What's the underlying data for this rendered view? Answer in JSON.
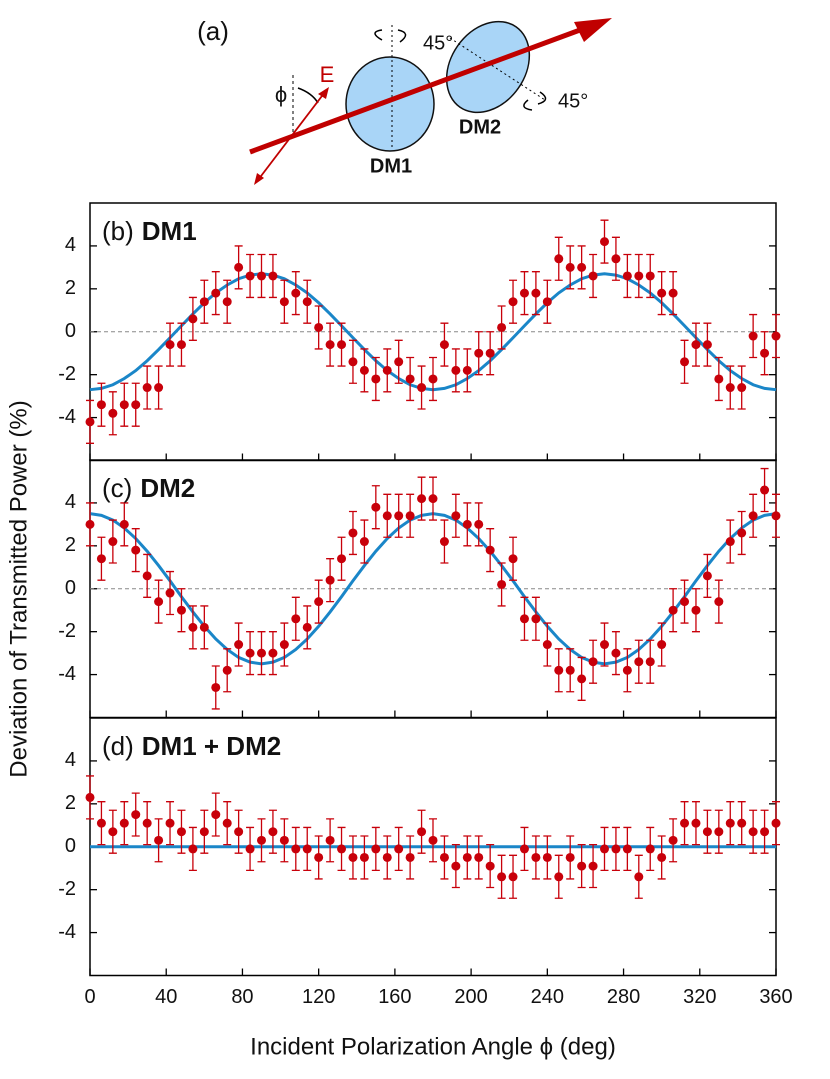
{
  "diagram": {
    "label": "(a)",
    "field": "E",
    "angle": "ϕ",
    "rot1": "45°",
    "rot2": "45°",
    "dm1": "DM1",
    "dm2": "DM2"
  },
  "figure": {
    "xlabel": "Incident Polarization Angle ϕ (deg)",
    "ylabel": "Deviation of Transmitted Power (%)"
  },
  "chart_data": [
    {
      "type": "scatter",
      "label": "(b)",
      "title": "DM1",
      "x": [
        0,
        6,
        12,
        18,
        24,
        30,
        36,
        42,
        48,
        54,
        60,
        66,
        72,
        78,
        84,
        90,
        96,
        102,
        108,
        114,
        120,
        126,
        132,
        138,
        144,
        150,
        156,
        162,
        168,
        174,
        180,
        186,
        192,
        198,
        204,
        210,
        216,
        222,
        228,
        234,
        240,
        246,
        252,
        258,
        264,
        270,
        276,
        282,
        288,
        294,
        300,
        306,
        312,
        318,
        324,
        330,
        336,
        342,
        348,
        354,
        360
      ],
      "xlim": [
        0,
        360
      ],
      "xticks": [
        0,
        40,
        80,
        120,
        160,
        200,
        240,
        280,
        320,
        360
      ],
      "ylim": [
        -6,
        6
      ],
      "yticks": [
        -4,
        -2,
        0,
        2,
        4
      ],
      "zero_line": true,
      "error": 1.0,
      "series": [
        {
          "kind": "points",
          "color": "#c8000a",
          "values": [
            -4.2,
            -3.4,
            -3.8,
            -3.4,
            -3.4,
            -2.6,
            -2.6,
            -0.6,
            -0.6,
            0.6,
            1.4,
            1.8,
            1.4,
            3.0,
            2.6,
            2.6,
            2.6,
            1.4,
            1.8,
            1.4,
            0.2,
            -0.6,
            -0.6,
            -1.4,
            -1.8,
            -2.2,
            -1.8,
            -1.4,
            -2.2,
            -2.6,
            -2.2,
            -0.6,
            -1.8,
            -1.8,
            -1.0,
            -1.0,
            0.2,
            1.4,
            1.8,
            1.8,
            1.4,
            3.4,
            3.0,
            3.0,
            2.6,
            4.2,
            3.4,
            2.6,
            2.6,
            2.6,
            1.8,
            1.8,
            -1.4,
            -0.6,
            -0.6,
            -2.2,
            -2.6,
            -2.6,
            -0.2,
            -1.0,
            -0.2
          ]
        },
        {
          "kind": "fit",
          "color": "#1a86c8",
          "values": [
            -2.7,
            -2.64,
            -2.47,
            -2.18,
            -1.81,
            -1.35,
            -0.83,
            -0.28,
            0.28,
            0.83,
            1.35,
            1.81,
            2.18,
            2.47,
            2.64,
            2.7,
            2.64,
            2.47,
            2.18,
            1.81,
            1.35,
            0.83,
            0.28,
            -0.28,
            -0.83,
            -1.35,
            -1.81,
            -2.18,
            -2.47,
            -2.64,
            -2.7,
            -2.64,
            -2.47,
            -2.18,
            -1.81,
            -1.35,
            -0.83,
            -0.28,
            0.28,
            0.83,
            1.35,
            1.81,
            2.18,
            2.47,
            2.64,
            2.7,
            2.64,
            2.47,
            2.18,
            1.81,
            1.35,
            0.83,
            0.28,
            -0.28,
            -0.83,
            -1.35,
            -1.81,
            -2.18,
            -2.47,
            -2.64,
            -2.7
          ]
        }
      ]
    },
    {
      "type": "scatter",
      "label": "(c)",
      "title": "DM2",
      "x": [
        0,
        6,
        12,
        18,
        24,
        30,
        36,
        42,
        48,
        54,
        60,
        66,
        72,
        78,
        84,
        90,
        96,
        102,
        108,
        114,
        120,
        126,
        132,
        138,
        144,
        150,
        156,
        162,
        168,
        174,
        180,
        186,
        192,
        198,
        204,
        210,
        216,
        222,
        228,
        234,
        240,
        246,
        252,
        258,
        264,
        270,
        276,
        282,
        288,
        294,
        300,
        306,
        312,
        318,
        324,
        330,
        336,
        342,
        348,
        354,
        360
      ],
      "xlim": [
        0,
        360
      ],
      "xticks": [
        0,
        40,
        80,
        120,
        160,
        200,
        240,
        280,
        320,
        360
      ],
      "ylim": [
        -6,
        6
      ],
      "yticks": [
        -4,
        -2,
        0,
        2,
        4
      ],
      "zero_line": true,
      "error": 1.0,
      "series": [
        {
          "kind": "points",
          "color": "#c8000a",
          "values": [
            3.0,
            1.4,
            2.2,
            3.0,
            1.8,
            0.6,
            -0.6,
            -0.2,
            -1.0,
            -1.8,
            -1.8,
            -4.6,
            -3.8,
            -2.6,
            -3.0,
            -3.0,
            -3.0,
            -2.6,
            -1.4,
            -1.8,
            -0.6,
            0.4,
            1.4,
            2.6,
            2.2,
            3.8,
            3.4,
            3.4,
            3.4,
            4.2,
            4.2,
            2.2,
            3.4,
            3.0,
            3.0,
            1.8,
            0.2,
            1.4,
            -1.4,
            -1.4,
            -2.6,
            -3.8,
            -3.8,
            -4.2,
            -3.4,
            -2.6,
            -3.0,
            -3.8,
            -3.4,
            -3.4,
            -2.6,
            -1.0,
            -0.6,
            -1.0,
            0.6,
            -0.6,
            2.2,
            2.6,
            3.4,
            4.6,
            3.4
          ]
        },
        {
          "kind": "fit",
          "color": "#1a86c8",
          "values": [
            3.5,
            3.42,
            3.2,
            2.83,
            2.34,
            1.75,
            1.08,
            0.37,
            -0.37,
            -1.08,
            -1.75,
            -2.34,
            -2.83,
            -3.2,
            -3.42,
            -3.5,
            -3.42,
            -3.2,
            -2.83,
            -2.34,
            -1.75,
            -1.08,
            -0.37,
            0.37,
            1.08,
            1.75,
            2.34,
            2.83,
            3.2,
            3.42,
            3.5,
            3.42,
            3.2,
            2.83,
            2.34,
            1.75,
            1.08,
            0.37,
            -0.37,
            -1.08,
            -1.75,
            -2.34,
            -2.83,
            -3.2,
            -3.42,
            -3.5,
            -3.42,
            -3.2,
            -2.83,
            -2.34,
            -1.75,
            -1.08,
            -0.37,
            0.37,
            1.08,
            1.75,
            2.34,
            2.83,
            3.2,
            3.42,
            3.5
          ]
        }
      ]
    },
    {
      "type": "scatter",
      "label": "(d)",
      "title": "DM1 + DM2",
      "x": [
        0,
        6,
        12,
        18,
        24,
        30,
        36,
        42,
        48,
        54,
        60,
        66,
        72,
        78,
        84,
        90,
        96,
        102,
        108,
        114,
        120,
        126,
        132,
        138,
        144,
        150,
        156,
        162,
        168,
        174,
        180,
        186,
        192,
        198,
        204,
        210,
        216,
        222,
        228,
        234,
        240,
        246,
        252,
        258,
        264,
        270,
        276,
        282,
        288,
        294,
        300,
        306,
        312,
        318,
        324,
        330,
        336,
        342,
        348,
        354,
        360
      ],
      "xlim": [
        0,
        360
      ],
      "xticks": [
        0,
        40,
        80,
        120,
        160,
        200,
        240,
        280,
        320,
        360
      ],
      "ylim": [
        -6,
        6
      ],
      "yticks": [
        -4,
        -2,
        0,
        2,
        4
      ],
      "zero_line": true,
      "error": 1.0,
      "series": [
        {
          "kind": "points",
          "color": "#c8000a",
          "values": [
            2.3,
            1.1,
            0.7,
            1.1,
            1.5,
            1.1,
            0.3,
            1.1,
            0.7,
            -0.1,
            0.7,
            1.5,
            1.1,
            0.7,
            -0.1,
            0.3,
            0.7,
            0.3,
            -0.1,
            -0.1,
            -0.5,
            0.3,
            -0.1,
            -0.5,
            -0.5,
            -0.1,
            -0.5,
            -0.1,
            -0.5,
            0.7,
            0.3,
            -0.5,
            -0.9,
            -0.5,
            -0.5,
            -0.9,
            -1.4,
            -1.4,
            -0.1,
            -0.5,
            -0.5,
            -1.4,
            -0.5,
            -0.9,
            -0.9,
            -0.1,
            -0.1,
            -0.1,
            -1.4,
            -0.1,
            -0.5,
            0.3,
            1.1,
            1.1,
            0.7,
            0.7,
            1.1,
            1.1,
            0.7,
            0.7,
            1.1
          ]
        },
        {
          "kind": "fit",
          "color": "#1a86c8",
          "values": [
            0,
            0,
            0,
            0,
            0,
            0,
            0,
            0,
            0,
            0,
            0,
            0,
            0,
            0,
            0,
            0,
            0,
            0,
            0,
            0,
            0,
            0,
            0,
            0,
            0,
            0,
            0,
            0,
            0,
            0,
            0,
            0,
            0,
            0,
            0,
            0,
            0,
            0,
            0,
            0,
            0,
            0,
            0,
            0,
            0,
            0,
            0,
            0,
            0,
            0,
            0,
            0,
            0,
            0,
            0,
            0,
            0,
            0,
            0,
            0,
            0
          ]
        }
      ]
    }
  ]
}
